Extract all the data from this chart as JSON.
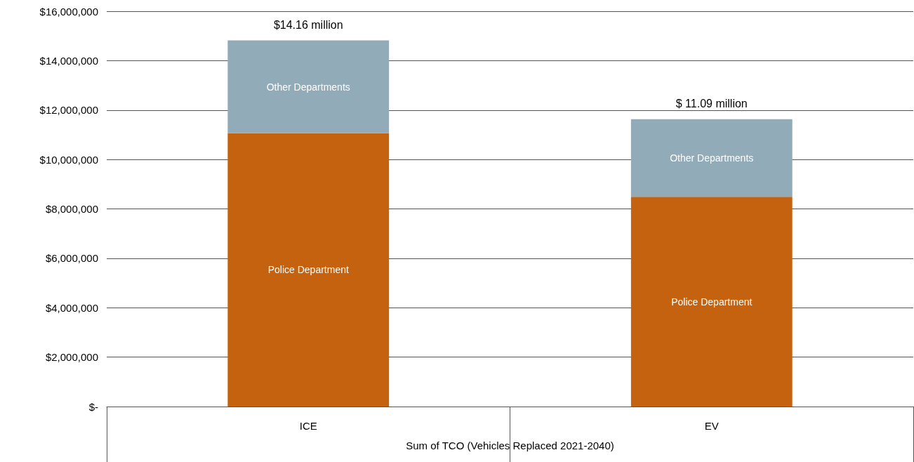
{
  "chart_data": {
    "type": "bar",
    "stacked": true,
    "xlabel": "Sum of TCO (Vehicles Replaced 2021-2040)",
    "categories": [
      "ICE",
      "EV"
    ],
    "series": [
      {
        "name": "Police Department",
        "color": "#c4620f",
        "values": [
          11060000,
          8490000
        ]
      },
      {
        "name": "Other Departments",
        "color": "#92abb9",
        "values": [
          3760000,
          3140000
        ]
      }
    ],
    "annotations": [
      {
        "text": "$14.16 million",
        "x": "ICE",
        "y": 14820000
      },
      {
        "text": "$ 11.09 million",
        "x": "EV",
        "y": 11630000
      }
    ],
    "ylim": [
      0,
      16000000
    ],
    "yticks": [
      {
        "value": 0,
        "label": "$-"
      },
      {
        "value": 2000000,
        "label": "$2,000,000"
      },
      {
        "value": 4000000,
        "label": "$4,000,000"
      },
      {
        "value": 6000000,
        "label": "$6,000,000"
      },
      {
        "value": 8000000,
        "label": "$8,000,000"
      },
      {
        "value": 10000000,
        "label": "$10,000,000"
      },
      {
        "value": 12000000,
        "label": "$12,000,000"
      },
      {
        "value": 14000000,
        "label": "$14,000,000"
      },
      {
        "value": 16000000,
        "label": "$16,000,000"
      }
    ],
    "grid": "y",
    "legend": false
  }
}
